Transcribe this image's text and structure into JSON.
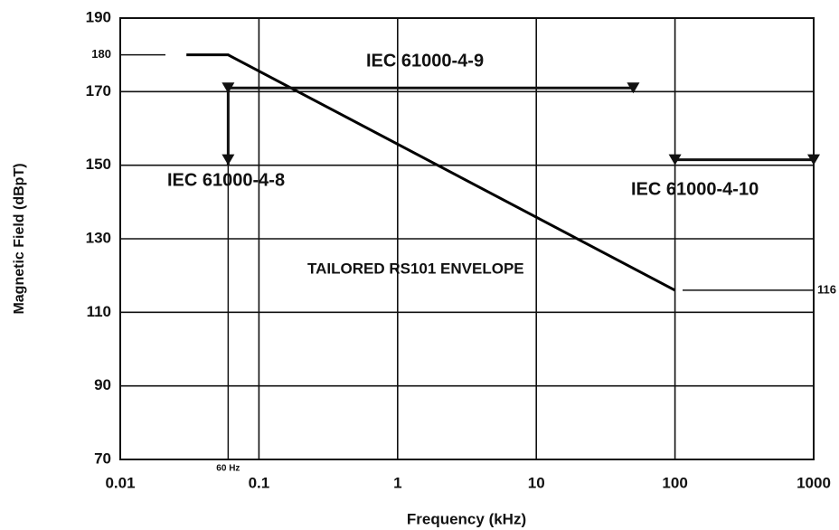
{
  "chart_data": {
    "type": "line",
    "xlabel": "Frequency (kHz)",
    "ylabel": "Magnetic Field (dBpT)",
    "xscale": "log",
    "xlim": [
      0.01,
      1000
    ],
    "xticks": [
      0.01,
      0.1,
      1,
      10,
      100,
      1000
    ],
    "ylim": [
      70,
      190
    ],
    "yticks": [
      70,
      90,
      110,
      130,
      150,
      170,
      190
    ],
    "grid": true,
    "series": [
      {
        "name": "TAILORED RS101 ENVELOPE",
        "color": "#000000",
        "x": [
          0.03,
          0.06,
          100
        ],
        "values": [
          180,
          180,
          116
        ]
      }
    ],
    "annotations": [
      {
        "text": "180",
        "y": 180
      },
      {
        "text": "116",
        "y": 116
      },
      {
        "text": "60 Hz",
        "x": 0.06
      }
    ],
    "ranges": [
      {
        "text": "IEC 61000-4-9",
        "x": [
          0.06,
          50
        ],
        "y": [
          171,
          171
        ]
      },
      {
        "text": "IEC 61000-4-8",
        "x": [
          0.06,
          0.06
        ],
        "y": [
          172,
          150
        ]
      },
      {
        "text": "IEC 61000-4-10",
        "x": [
          100,
          1000
        ],
        "y": [
          151.5,
          151.5
        ]
      }
    ]
  }
}
